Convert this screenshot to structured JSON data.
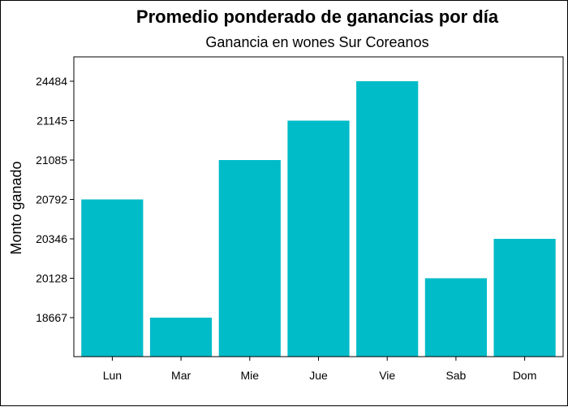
{
  "chart_data": {
    "type": "bar",
    "title": "Promedio ponderado de ganancias por día",
    "subtitle": "Ganancia en wones Sur Coreanos",
    "xlabel": "",
    "ylabel": "Monto ganado",
    "categories": [
      "Lun",
      "Mar",
      "Mie",
      "Jue",
      "Vie",
      "Sab",
      "Dom"
    ],
    "values": [
      20792,
      18667,
      21085,
      21145,
      24484,
      20128,
      20346
    ],
    "y_tick_labels": [
      "18667",
      "20128",
      "20346",
      "20792",
      "21085",
      "21145",
      "24484"
    ],
    "y_scale": "ordinal (evenly spaced ranked ticks)",
    "grid": false,
    "legend": "none",
    "bar_color": "#00BBC8"
  }
}
